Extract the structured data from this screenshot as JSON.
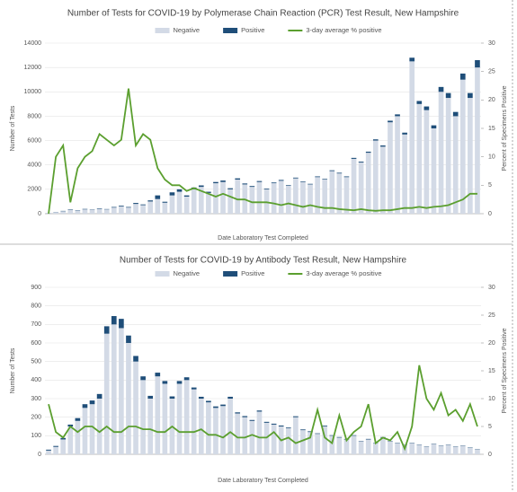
{
  "chart_data": [
    {
      "type": "bar",
      "title": "Number of Tests for COVID-19 by Polymerase Chain Reaction (PCR) Test Result, New Hampshire",
      "x_label": "Date Laboratory Test Completed",
      "y_label": "Number of Tests",
      "y2_label": "Percent of Specimens Positive",
      "ylim": [
        0,
        14000
      ],
      "yticks": [
        0,
        2000,
        4000,
        6000,
        8000,
        10000,
        12000,
        14000
      ],
      "y2lim": [
        0,
        30
      ],
      "y2ticks": [
        0,
        5,
        10,
        15,
        20,
        25,
        30
      ],
      "stacked": true,
      "series": [
        {
          "name": "Negative",
          "color": "#d3dae6",
          "values": [
            50,
            100,
            200,
            300,
            250,
            350,
            300,
            400,
            350,
            500,
            600,
            500,
            800,
            700,
            1000,
            1200,
            900,
            1500,
            1800,
            1400,
            2000,
            2200,
            1700,
            2500,
            2600,
            2000,
            2800,
            2400,
            2200,
            2600,
            2000,
            2500,
            2700,
            2300,
            2900,
            2600,
            2400,
            3000,
            2800,
            3500,
            3300,
            3000,
            4500,
            4200,
            5000,
            6000,
            5500,
            7500,
            8000,
            6500,
            12500,
            9000,
            8500,
            7000,
            10000,
            9500,
            8000,
            11000,
            9500,
            12000
          ]
        },
        {
          "name": "Positive",
          "color": "#1f4e79",
          "values": [
            10,
            20,
            30,
            40,
            30,
            40,
            30,
            40,
            30,
            50,
            60,
            50,
            80,
            60,
            90,
            300,
            80,
            250,
            200,
            100,
            150,
            120,
            100,
            100,
            120,
            90,
            100,
            80,
            70,
            80,
            60,
            60,
            70,
            50,
            60,
            50,
            50,
            60,
            50,
            60,
            60,
            60,
            80,
            70,
            90,
            100,
            100,
            130,
            150,
            150,
            300,
            250,
            300,
            250,
            400,
            400,
            350,
            500,
            400,
            600
          ]
        },
        {
          "name": "3-day average % positive",
          "color": "#5b9f2f",
          "type": "line",
          "axis": "y2",
          "values": [
            0,
            10,
            12,
            2,
            8,
            10,
            11,
            14,
            13,
            12,
            13,
            22,
            12,
            14,
            13,
            8,
            6,
            5,
            5,
            4,
            4.5,
            4,
            3.5,
            3,
            3.5,
            3,
            2.5,
            2.5,
            2,
            2,
            2,
            1.8,
            1.5,
            1.8,
            1.5,
            1.2,
            1.5,
            1.2,
            1,
            1,
            0.8,
            0.7,
            0.6,
            0.8,
            0.6,
            0.5,
            0.6,
            0.6,
            0.8,
            1,
            1,
            1.2,
            1,
            1.2,
            1.3,
            1.5,
            2,
            2.5,
            3.5,
            3.5
          ]
        }
      ]
    },
    {
      "type": "bar",
      "title": "Number of Tests for COVID-19 by Antibody Test Result, New Hampshire",
      "x_label": "Date Laboratory Test Completed",
      "y_label": "Number of Tests",
      "y2_label": "Percent of Specimens Positive",
      "ylim": [
        0,
        900
      ],
      "yticks": [
        0,
        100,
        200,
        300,
        400,
        500,
        600,
        700,
        800,
        900
      ],
      "y2lim": [
        0,
        30
      ],
      "y2ticks": [
        0,
        5,
        10,
        15,
        20,
        25,
        30
      ],
      "stacked": true,
      "series": [
        {
          "name": "Negative",
          "color": "#d3dae6",
          "values": [
            20,
            40,
            80,
            150,
            180,
            250,
            270,
            300,
            650,
            700,
            680,
            600,
            500,
            400,
            300,
            420,
            380,
            300,
            380,
            400,
            350,
            300,
            280,
            250,
            260,
            300,
            220,
            200,
            180,
            230,
            170,
            160,
            150,
            140,
            200,
            130,
            120,
            110,
            150,
            100,
            90,
            80,
            100,
            70,
            80,
            60,
            90,
            70,
            60,
            50,
            60,
            50,
            40,
            55,
            45,
            50,
            40,
            45,
            35,
            25
          ]
        },
        {
          "name": "Positive",
          "color": "#1f4e79",
          "values": [
            5,
            5,
            8,
            10,
            15,
            20,
            20,
            25,
            40,
            45,
            50,
            40,
            30,
            20,
            15,
            20,
            15,
            12,
            15,
            15,
            10,
            10,
            8,
            8,
            8,
            10,
            6,
            6,
            5,
            6,
            5,
            5,
            5,
            4,
            5,
            4,
            4,
            3,
            4,
            3,
            3,
            3,
            3,
            2,
            3,
            2,
            3,
            2,
            2,
            2,
            2,
            2,
            2,
            2,
            2,
            2,
            2,
            2,
            2,
            2
          ]
        },
        {
          "name": "3-day average % positive",
          "color": "#5b9f2f",
          "type": "line",
          "axis": "y2",
          "values": [
            9,
            4,
            3,
            5,
            4,
            5,
            5,
            4,
            5,
            4,
            4,
            5,
            5,
            4.5,
            4.5,
            4,
            4,
            5,
            4,
            4,
            4,
            4.5,
            3.5,
            3.5,
            3,
            4,
            3,
            3,
            3.5,
            3,
            3,
            4,
            2.5,
            3,
            2,
            2.5,
            3,
            8,
            3,
            2,
            7,
            2.5,
            4,
            5,
            9,
            2,
            3,
            2.5,
            4,
            1,
            5,
            16,
            10,
            8,
            11,
            7,
            8,
            6,
            9,
            5
          ]
        }
      ]
    }
  ]
}
